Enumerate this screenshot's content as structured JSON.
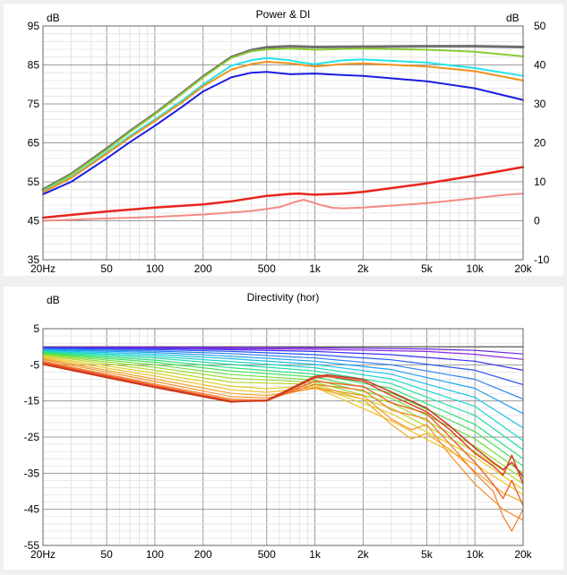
{
  "chart_data": [
    {
      "type": "line",
      "title": "Power & DI",
      "ylabel": "dB",
      "y2label": "dB",
      "xscale": "log",
      "xlim": [
        20,
        20000
      ],
      "ylim": [
        35,
        95
      ],
      "y2lim": [
        -10,
        50
      ],
      "grid": true,
      "legend": "none",
      "x_ticks": [
        {
          "v": 20,
          "label": "20Hz"
        },
        {
          "v": 50,
          "label": "50"
        },
        {
          "v": 100,
          "label": "100"
        },
        {
          "v": 200,
          "label": "200"
        },
        {
          "v": 500,
          "label": "500"
        },
        {
          "v": 1000,
          "label": "1k"
        },
        {
          "v": 2000,
          "label": "2k"
        },
        {
          "v": 5000,
          "label": "5k"
        },
        {
          "v": 10000,
          "label": "10k"
        },
        {
          "v": 20000,
          "label": "20k"
        }
      ],
      "y_ticks": [
        {
          "v": 95,
          "label": "95"
        },
        {
          "v": 85,
          "label": "85"
        },
        {
          "v": 75,
          "label": "75"
        },
        {
          "v": 65,
          "label": "65"
        },
        {
          "v": 55,
          "label": "55"
        },
        {
          "v": 45,
          "label": "45"
        },
        {
          "v": 35,
          "label": "35"
        }
      ],
      "y2_ticks": [
        {
          "v": 50,
          "label": "50"
        },
        {
          "v": 40,
          "label": "40"
        },
        {
          "v": 30,
          "label": "30"
        },
        {
          "v": 20,
          "label": "20"
        },
        {
          "v": 10,
          "label": "10"
        },
        {
          "v": 0,
          "label": "0"
        },
        {
          "v": -10,
          "label": "-10"
        }
      ],
      "series": [
        {
          "color": "#6e6e6e",
          "width": 3,
          "axis": "left",
          "x": [
            20,
            30,
            50,
            70,
            100,
            150,
            200,
            300,
            400,
            500,
            700,
            1000,
            2000,
            5000,
            10000,
            20000
          ],
          "y": [
            53.0,
            57.0,
            63.5,
            68.0,
            72.5,
            78.0,
            82.0,
            87.0,
            88.8,
            89.5,
            89.8,
            89.6,
            89.7,
            89.8,
            89.8,
            89.6
          ]
        },
        {
          "color": "#8ccc33",
          "width": 2,
          "axis": "left",
          "x": [
            20,
            30,
            50,
            70,
            100,
            150,
            200,
            300,
            400,
            500,
            700,
            1000,
            2000,
            5000,
            10000,
            20000
          ],
          "y": [
            52.8,
            56.8,
            63.2,
            67.8,
            72.3,
            77.8,
            81.8,
            86.8,
            88.5,
            89.0,
            89.2,
            88.9,
            89.2,
            88.9,
            88.4,
            87.2
          ]
        },
        {
          "color": "#22e4e8",
          "width": 2,
          "axis": "left",
          "x": [
            20,
            30,
            50,
            70,
            100,
            150,
            200,
            300,
            400,
            500,
            700,
            800,
            1000,
            1500,
            2000,
            5000,
            10000,
            20000
          ],
          "y": [
            52.5,
            56.2,
            62.5,
            66.8,
            71.0,
            76.0,
            80.0,
            84.8,
            86.2,
            86.8,
            86.2,
            85.7,
            85.2,
            86.2,
            86.4,
            85.6,
            84.2,
            82.2
          ]
        },
        {
          "color": "#f0921c",
          "width": 2,
          "axis": "left",
          "x": [
            20,
            30,
            50,
            70,
            100,
            150,
            200,
            300,
            400,
            500,
            700,
            1000,
            1500,
            2000,
            5000,
            10000,
            20000
          ],
          "y": [
            52.3,
            56.0,
            62.2,
            66.4,
            70.6,
            75.6,
            79.5,
            83.8,
            85.2,
            85.8,
            85.4,
            84.6,
            85.2,
            85.4,
            84.6,
            83.4,
            81.0
          ]
        },
        {
          "color": "#1c1ce0",
          "width": 2,
          "axis": "left",
          "x": [
            20,
            30,
            50,
            70,
            100,
            150,
            200,
            300,
            400,
            500,
            700,
            1000,
            1500,
            2000,
            5000,
            10000,
            20000
          ],
          "y": [
            51.8,
            55.0,
            61.0,
            65.2,
            69.4,
            74.4,
            78.2,
            81.8,
            83.0,
            83.2,
            82.6,
            82.8,
            82.4,
            82.2,
            80.8,
            79.0,
            76.0
          ]
        },
        {
          "color": "#e8241c",
          "width": 2.5,
          "axis": "right",
          "x": [
            20,
            50,
            100,
            200,
            300,
            500,
            700,
            800,
            900,
            1000,
            1500,
            2000,
            5000,
            10000,
            20000
          ],
          "y": [
            0.8,
            2.4,
            3.4,
            4.2,
            5.0,
            6.4,
            6.9,
            7.0,
            6.8,
            6.7,
            7.0,
            7.4,
            9.6,
            11.6,
            13.8
          ]
        },
        {
          "color": "#f28b82",
          "width": 2,
          "axis": "right",
          "x": [
            20,
            50,
            100,
            200,
            400,
            600,
            750,
            850,
            950,
            1100,
            1300,
            1500,
            2000,
            5000,
            10000,
            15000,
            20000
          ],
          "y": [
            0.0,
            0.6,
            1.0,
            1.6,
            2.5,
            3.5,
            4.8,
            5.4,
            4.8,
            4.0,
            3.3,
            3.2,
            3.4,
            4.5,
            5.8,
            6.6,
            7.0
          ]
        }
      ]
    },
    {
      "type": "line",
      "title": "Directivity (hor)",
      "ylabel": "dB",
      "xscale": "log",
      "xlim": [
        20,
        20000
      ],
      "ylim": [
        -55,
        5
      ],
      "grid": true,
      "legend": "none",
      "x_ticks": [
        {
          "v": 20,
          "label": "20Hz"
        },
        {
          "v": 50,
          "label": "50"
        },
        {
          "v": 100,
          "label": "100"
        },
        {
          "v": 200,
          "label": "200"
        },
        {
          "v": 500,
          "label": "500"
        },
        {
          "v": 1000,
          "label": "1k"
        },
        {
          "v": 2000,
          "label": "2k"
        },
        {
          "v": 5000,
          "label": "5k"
        },
        {
          "v": 10000,
          "label": "10k"
        },
        {
          "v": 20000,
          "label": "20k"
        }
      ],
      "y_ticks": [
        {
          "v": 5,
          "label": "5"
        },
        {
          "v": -5,
          "label": "-5"
        },
        {
          "v": -15,
          "label": "-15"
        },
        {
          "v": -25,
          "label": "-25"
        },
        {
          "v": -35,
          "label": "-35"
        },
        {
          "v": -45,
          "label": "-45"
        },
        {
          "v": -55,
          "label": "-55"
        }
      ],
      "series": [
        {
          "color": "#707070",
          "width": 1.5,
          "x": [
            20,
            100,
            1000,
            20000
          ],
          "y": [
            0,
            0,
            0,
            0
          ]
        },
        {
          "color": "#6a1fd8",
          "width": 1.2,
          "x": [
            20,
            100,
            1000,
            5000,
            10000,
            20000
          ],
          "y": [
            -0.1,
            -0.1,
            -0.3,
            -0.6,
            -1.0,
            -2.0
          ]
        },
        {
          "color": "#8a2be2",
          "width": 1.2,
          "x": [
            20,
            100,
            1000,
            5000,
            10000,
            20000
          ],
          "y": [
            -0.2,
            -0.3,
            -0.7,
            -1.3,
            -2.1,
            -3.5
          ]
        },
        {
          "color": "#3a2ff0",
          "width": 1.2,
          "x": [
            20,
            100,
            300,
            1000,
            3000,
            10000,
            20000
          ],
          "y": [
            -0.3,
            -0.5,
            -0.8,
            -1.3,
            -2.2,
            -4.0,
            -6.5
          ]
        },
        {
          "color": "#2a55f2",
          "width": 1.2,
          "x": [
            20,
            100,
            300,
            1000,
            3000,
            10000,
            20000
          ],
          "y": [
            -0.4,
            -0.8,
            -1.3,
            -2.2,
            -3.6,
            -6.5,
            -10.5
          ]
        },
        {
          "color": "#2a7ff2",
          "width": 1.2,
          "x": [
            20,
            100,
            300,
            1000,
            3000,
            10000,
            20000
          ],
          "y": [
            -0.6,
            -1.2,
            -1.9,
            -3.1,
            -5.0,
            -9.0,
            -14.5
          ]
        },
        {
          "color": "#1fa2ee",
          "width": 1.2,
          "x": [
            20,
            100,
            300,
            1000,
            3000,
            10000,
            20000
          ],
          "y": [
            -0.8,
            -1.6,
            -2.6,
            -4.0,
            -6.3,
            -11.5,
            -18.5
          ]
        },
        {
          "color": "#1cc0e6",
          "width": 1.2,
          "x": [
            20,
            100,
            300,
            1000,
            3000,
            10000,
            20000
          ],
          "y": [
            -1.0,
            -2.1,
            -3.3,
            -4.9,
            -7.6,
            -14.0,
            -22.5
          ]
        },
        {
          "color": "#1cd6c9",
          "width": 1.2,
          "x": [
            20,
            100,
            300,
            1000,
            3000,
            10000,
            20000
          ],
          "y": [
            -1.2,
            -2.6,
            -4.1,
            -5.8,
            -8.9,
            -16.5,
            -26.0
          ]
        },
        {
          "color": "#22dca4",
          "width": 1.2,
          "x": [
            20,
            100,
            300,
            1000,
            3000,
            10000,
            20000
          ],
          "y": [
            -1.4,
            -3.1,
            -4.9,
            -6.7,
            -10.2,
            -19.0,
            -28.5
          ]
        },
        {
          "color": "#2ee07c",
          "width": 1.2,
          "x": [
            20,
            100,
            300,
            1000,
            3000,
            10000,
            20000
          ],
          "y": [
            -1.6,
            -3.7,
            -5.8,
            -7.6,
            -11.5,
            -21.5,
            -31.0
          ]
        },
        {
          "color": "#48e05a",
          "width": 1.2,
          "x": [
            20,
            100,
            300,
            1000,
            3000,
            10000,
            20000
          ],
          "y": [
            -1.8,
            -4.3,
            -6.7,
            -8.4,
            -12.8,
            -23.5,
            -33.0
          ]
        },
        {
          "color": "#6ee03c",
          "width": 1.2,
          "x": [
            20,
            100,
            300,
            1000,
            3000,
            10000,
            20000
          ],
          "y": [
            -2.0,
            -5.0,
            -7.7,
            -9.2,
            -14.2,
            -25.5,
            -35.0
          ]
        },
        {
          "color": "#98dc30",
          "width": 1.2,
          "x": [
            20,
            100,
            300,
            1000,
            3000,
            10000,
            20000
          ],
          "y": [
            -2.2,
            -5.7,
            -8.7,
            -9.8,
            -15.5,
            -27.5,
            -36.5
          ]
        },
        {
          "color": "#bcd62c",
          "width": 1.2,
          "x": [
            20,
            100,
            300,
            1000,
            3000,
            10000,
            20000
          ],
          "y": [
            -2.4,
            -6.5,
            -9.8,
            -10.4,
            -17.0,
            -29.0,
            -38.0
          ]
        },
        {
          "color": "#ded02a",
          "width": 1.2,
          "x": [
            20,
            100,
            300,
            500,
            1000,
            3000,
            10000,
            20000
          ],
          "y": [
            -2.7,
            -7.3,
            -10.9,
            -11.6,
            -10.8,
            -18.5,
            -30.5,
            -39.5
          ]
        },
        {
          "color": "#f0c02a",
          "width": 1.2,
          "x": [
            20,
            100,
            300,
            500,
            1000,
            3000,
            10000,
            20000
          ],
          "y": [
            -3.0,
            -8.1,
            -11.9,
            -12.6,
            -11.2,
            -20.5,
            -32.5,
            -41.0
          ]
        },
        {
          "color": "#f2a52a",
          "width": 1.2,
          "x": [
            20,
            100,
            300,
            500,
            1000,
            2000,
            3000,
            4000,
            5000,
            7000,
            10000,
            15000,
            20000
          ],
          "y": [
            -3.3,
            -8.9,
            -12.9,
            -13.5,
            -11.5,
            -14.5,
            -21.5,
            -25.5,
            -24.0,
            -28.5,
            -34.5,
            -40.5,
            -43.0
          ]
        },
        {
          "color": "#f4902a",
          "width": 1.2,
          "x": [
            20,
            100,
            300,
            500,
            1000,
            2000,
            3000,
            4000,
            5000,
            7000,
            10000,
            15000,
            20000
          ],
          "y": [
            -3.6,
            -9.6,
            -13.8,
            -14.2,
            -11.3,
            -13.5,
            -20.0,
            -23.0,
            -21.5,
            -30.0,
            -38.0,
            -45.0,
            -48.0
          ]
        },
        {
          "color": "#f47a28",
          "width": 1.2,
          "x": [
            20,
            100,
            300,
            500,
            1000,
            2000,
            3000,
            5000,
            7000,
            10000,
            13000,
            15000,
            17000,
            20000
          ],
          "y": [
            -4.0,
            -10.3,
            -14.5,
            -14.8,
            -10.4,
            -12.0,
            -17.5,
            -20.0,
            -27.0,
            -35.0,
            -40.0,
            -47.0,
            -51.0,
            -45.0
          ]
        },
        {
          "color": "#ee6228",
          "width": 1.4,
          "x": [
            20,
            100,
            300,
            500,
            1000,
            2000,
            3000,
            5000,
            7000,
            10000,
            13000,
            15000,
            17000,
            20000
          ],
          "y": [
            -4.3,
            -10.7,
            -14.9,
            -15.0,
            -9.5,
            -11.0,
            -15.5,
            -18.5,
            -25.0,
            -32.0,
            -38.0,
            -42.0,
            -37.0,
            -44.0
          ]
        },
        {
          "color": "#e04426",
          "width": 1.5,
          "x": [
            20,
            100,
            300,
            500,
            1000,
            1200,
            2000,
            3000,
            5000,
            7000,
            10000,
            13000,
            15000,
            17000,
            20000
          ],
          "y": [
            -4.6,
            -11.0,
            -15.1,
            -15.0,
            -8.6,
            -8.2,
            -9.5,
            -13.5,
            -18.0,
            -23.0,
            -29.5,
            -33.0,
            -35.5,
            -30.0,
            -38.0
          ]
        },
        {
          "color": "#c8361c",
          "width": 1.5,
          "x": [
            20,
            100,
            300,
            500,
            1000,
            1200,
            2000,
            3000,
            5000,
            7000,
            10000,
            13000,
            15000,
            17000,
            20000
          ],
          "y": [
            -4.9,
            -11.3,
            -15.3,
            -14.8,
            -8.2,
            -7.8,
            -9.0,
            -12.5,
            -17.0,
            -22.0,
            -28.0,
            -32.0,
            -34.0,
            -32.0,
            -36.0
          ]
        }
      ]
    }
  ]
}
